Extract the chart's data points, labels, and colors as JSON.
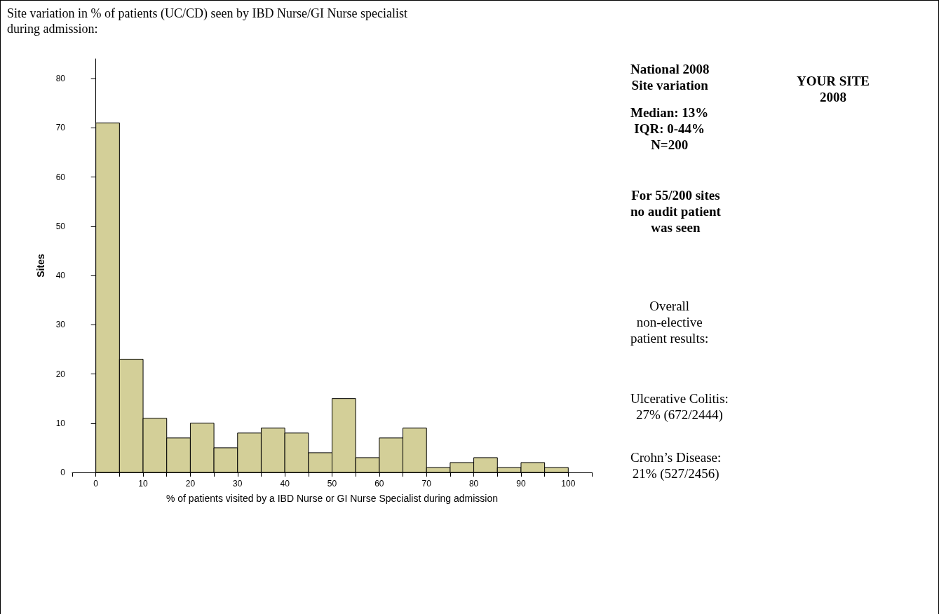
{
  "chart_data": {
    "type": "histogram",
    "title": "Site variation in % of patients (UC/CD) seen by IBD Nurse/GI Nurse specialist\nduring admission:",
    "xlabel": "% of patients visited by a IBD Nurse or GI Nurse Specialist during admission",
    "ylabel": "Sites",
    "color": "#d3cf98",
    "bins": [
      0,
      5,
      10,
      15,
      20,
      25,
      30,
      35,
      40,
      45,
      50,
      55,
      60,
      65,
      70,
      75,
      80,
      85,
      90,
      95,
      100
    ],
    "values": [
      71,
      23,
      11,
      7,
      10,
      5,
      8,
      9,
      8,
      4,
      15,
      3,
      7,
      9,
      1,
      2,
      3,
      1,
      2,
      1
    ],
    "xlim": [
      -5,
      105
    ],
    "xticks": [
      {
        "value": -5,
        "label": null
      },
      0,
      {
        "value": 5,
        "label": null
      },
      10,
      {
        "value": 15,
        "label": null
      },
      20,
      {
        "value": 25,
        "label": null
      },
      30,
      {
        "value": 35,
        "label": null
      },
      40,
      {
        "value": 45,
        "label": null
      },
      50,
      {
        "value": 55,
        "label": null
      },
      60,
      {
        "value": 65,
        "label": null
      },
      70,
      {
        "value": 75,
        "label": null
      },
      80,
      {
        "value": 85,
        "label": null
      },
      90,
      {
        "value": 95,
        "label": null
      },
      100,
      {
        "value": 105,
        "label": null
      }
    ],
    "ylim": [
      0,
      84
    ],
    "yticks": [
      0,
      10,
      20,
      30,
      40,
      50,
      60,
      70,
      80
    ],
    "annotations": [
      "National 2008\nSite variation",
      "Median: 13%\nIQR: 0-44%\nN=200",
      "For 55/200 sites\nno audit patient\nwas seen",
      "YOUR SITE\n2008",
      "Overall\nnon-elective\npatient results:",
      "Ulcerative Colitis:\n27% (672/2444)",
      "Crohn’s Disease:\n21% (527/2456)"
    ]
  }
}
